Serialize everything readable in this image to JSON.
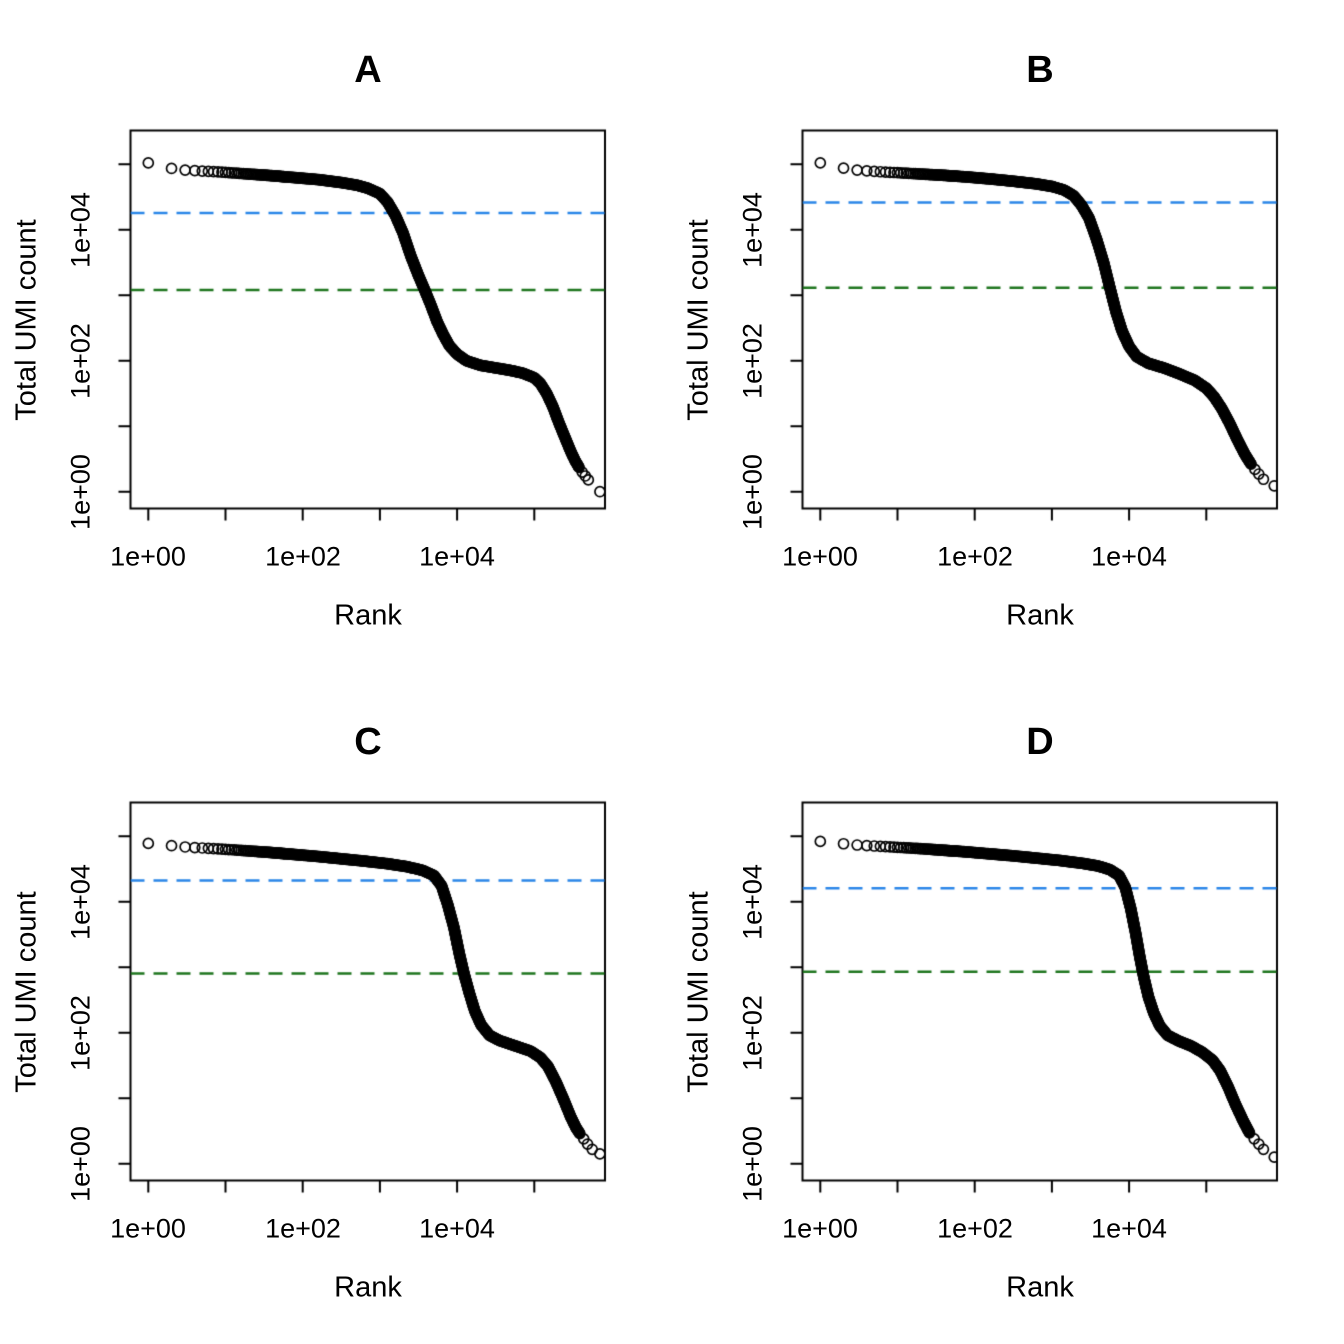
{
  "figure": {
    "background": "#FFFFFF",
    "point_color": "#000000"
  },
  "chart_data": [
    {
      "type": "scatter",
      "title": "A",
      "xlabel": "Rank",
      "ylabel": "Total UMI count",
      "xscale": "log",
      "yscale": "log",
      "xlim_log10": [
        -0.23,
        5.92
      ],
      "ylim_log10": [
        -0.26,
        5.51
      ],
      "x_ticks_log10": [
        0,
        1,
        2,
        3,
        4,
        5
      ],
      "y_ticks_log10": [
        0,
        1,
        2,
        3,
        4,
        5
      ],
      "x_tick_labels": [
        "1e+00",
        "1e+02",
        "1e+04"
      ],
      "y_tick_labels": [
        "1e+00",
        "1e+02",
        "1e+04"
      ],
      "grid": false,
      "knee_count": 18000,
      "inflection_count": 1200,
      "knee_color": "#2B86E8",
      "inflection_color": "#1E751E",
      "curve_log10": [
        [
          0,
          5.02
        ],
        [
          0.3,
          4.935
        ],
        [
          0.48,
          4.91
        ],
        [
          0.7,
          4.895
        ],
        [
          1.0,
          4.875
        ],
        [
          1.3,
          4.85
        ],
        [
          1.6,
          4.825
        ],
        [
          1.9,
          4.795
        ],
        [
          2.2,
          4.765
        ],
        [
          2.5,
          4.72
        ],
        [
          2.7,
          4.68
        ],
        [
          2.85,
          4.63
        ],
        [
          3.0,
          4.55
        ],
        [
          3.1,
          4.42
        ],
        [
          3.2,
          4.22
        ],
        [
          3.3,
          3.95
        ],
        [
          3.4,
          3.6
        ],
        [
          3.5,
          3.3
        ],
        [
          3.58,
          3.08
        ],
        [
          3.66,
          2.85
        ],
        [
          3.74,
          2.6
        ],
        [
          3.82,
          2.4
        ],
        [
          3.9,
          2.23
        ],
        [
          4.0,
          2.1
        ],
        [
          4.12,
          2.0
        ],
        [
          4.3,
          1.93
        ],
        [
          4.5,
          1.89
        ],
        [
          4.7,
          1.85
        ],
        [
          4.85,
          1.81
        ],
        [
          5.0,
          1.74
        ],
        [
          5.08,
          1.65
        ],
        [
          5.16,
          1.5
        ],
        [
          5.24,
          1.3
        ],
        [
          5.32,
          1.05
        ],
        [
          5.4,
          0.82
        ],
        [
          5.47,
          0.62
        ],
        [
          5.53,
          0.47
        ],
        [
          5.58,
          0.37
        ]
      ],
      "tail_log10": [
        [
          5.62,
          0.3
        ],
        [
          5.66,
          0.24
        ],
        [
          5.7,
          0.18
        ],
        [
          5.85,
          0.0
        ]
      ]
    },
    {
      "type": "scatter",
      "title": "B",
      "xlabel": "Rank",
      "ylabel": "Total UMI count",
      "xscale": "log",
      "yscale": "log",
      "xlim_log10": [
        -0.23,
        5.92
      ],
      "ylim_log10": [
        -0.26,
        5.51
      ],
      "x_ticks_log10": [
        0,
        1,
        2,
        3,
        4,
        5
      ],
      "y_ticks_log10": [
        0,
        1,
        2,
        3,
        4,
        5
      ],
      "x_tick_labels": [
        "1e+00",
        "1e+02",
        "1e+04"
      ],
      "y_tick_labels": [
        "1e+00",
        "1e+02",
        "1e+04"
      ],
      "grid": false,
      "knee_count": 26000,
      "inflection_count": 1300,
      "knee_color": "#2B86E8",
      "inflection_color": "#1E751E",
      "curve_log10": [
        [
          0,
          5.02
        ],
        [
          0.3,
          4.94
        ],
        [
          0.48,
          4.91
        ],
        [
          0.7,
          4.89
        ],
        [
          1.0,
          4.87
        ],
        [
          1.3,
          4.85
        ],
        [
          1.6,
          4.83
        ],
        [
          1.9,
          4.805
        ],
        [
          2.2,
          4.775
        ],
        [
          2.5,
          4.74
        ],
        [
          2.8,
          4.7
        ],
        [
          3.0,
          4.66
        ],
        [
          3.15,
          4.61
        ],
        [
          3.28,
          4.52
        ],
        [
          3.38,
          4.38
        ],
        [
          3.48,
          4.18
        ],
        [
          3.58,
          3.85
        ],
        [
          3.67,
          3.5
        ],
        [
          3.75,
          3.12
        ],
        [
          3.83,
          2.75
        ],
        [
          3.91,
          2.45
        ],
        [
          4.0,
          2.22
        ],
        [
          4.1,
          2.06
        ],
        [
          4.25,
          1.96
        ],
        [
          4.45,
          1.89
        ],
        [
          4.65,
          1.8
        ],
        [
          4.85,
          1.7
        ],
        [
          5.0,
          1.58
        ],
        [
          5.1,
          1.45
        ],
        [
          5.2,
          1.27
        ],
        [
          5.3,
          1.05
        ],
        [
          5.4,
          0.8
        ],
        [
          5.5,
          0.57
        ],
        [
          5.58,
          0.42
        ]
      ],
      "tail_log10": [
        [
          5.63,
          0.34
        ],
        [
          5.68,
          0.27
        ],
        [
          5.74,
          0.19
        ],
        [
          5.88,
          0.09
        ]
      ]
    },
    {
      "type": "scatter",
      "title": "C",
      "xlabel": "Rank",
      "ylabel": "Total UMI count",
      "xscale": "log",
      "yscale": "log",
      "xlim_log10": [
        -0.23,
        5.92
      ],
      "ylim_log10": [
        -0.26,
        5.51
      ],
      "x_ticks_log10": [
        0,
        1,
        2,
        3,
        4,
        5
      ],
      "y_ticks_log10": [
        0,
        1,
        2,
        3,
        4,
        5
      ],
      "x_tick_labels": [
        "1e+00",
        "1e+02",
        "1e+04"
      ],
      "y_tick_labels": [
        "1e+00",
        "1e+02",
        "1e+04"
      ],
      "grid": false,
      "knee_count": 21000,
      "inflection_count": 800,
      "knee_color": "#2B86E8",
      "inflection_color": "#1E751E",
      "curve_log10": [
        [
          0,
          4.89
        ],
        [
          0.3,
          4.855
        ],
        [
          0.48,
          4.835
        ],
        [
          0.7,
          4.82
        ],
        [
          1.0,
          4.8
        ],
        [
          1.3,
          4.775
        ],
        [
          1.6,
          4.75
        ],
        [
          1.9,
          4.72
        ],
        [
          2.2,
          4.69
        ],
        [
          2.5,
          4.655
        ],
        [
          2.8,
          4.62
        ],
        [
          3.1,
          4.58
        ],
        [
          3.35,
          4.535
        ],
        [
          3.55,
          4.48
        ],
        [
          3.7,
          4.4
        ],
        [
          3.8,
          4.24
        ],
        [
          3.88,
          3.95
        ],
        [
          3.96,
          3.6
        ],
        [
          4.03,
          3.2
        ],
        [
          4.09,
          2.9
        ],
        [
          4.16,
          2.6
        ],
        [
          4.23,
          2.33
        ],
        [
          4.31,
          2.12
        ],
        [
          4.42,
          1.96
        ],
        [
          4.55,
          1.88
        ],
        [
          4.75,
          1.8
        ],
        [
          4.95,
          1.72
        ],
        [
          5.08,
          1.62
        ],
        [
          5.18,
          1.48
        ],
        [
          5.28,
          1.25
        ],
        [
          5.38,
          0.98
        ],
        [
          5.47,
          0.72
        ],
        [
          5.54,
          0.55
        ],
        [
          5.59,
          0.46
        ]
      ],
      "tail_log10": [
        [
          5.64,
          0.38
        ],
        [
          5.69,
          0.3
        ],
        [
          5.75,
          0.22
        ],
        [
          5.85,
          0.15
        ]
      ]
    },
    {
      "type": "scatter",
      "title": "D",
      "xlabel": "Rank",
      "ylabel": "Total UMI count",
      "xscale": "log",
      "yscale": "log",
      "xlim_log10": [
        -0.23,
        5.92
      ],
      "ylim_log10": [
        -0.26,
        5.51
      ],
      "x_ticks_log10": [
        0,
        1,
        2,
        3,
        4,
        5
      ],
      "y_ticks_log10": [
        0,
        1,
        2,
        3,
        4,
        5
      ],
      "x_tick_labels": [
        "1e+00",
        "1e+02",
        "1e+04"
      ],
      "y_tick_labels": [
        "1e+00",
        "1e+02",
        "1e+04"
      ],
      "grid": false,
      "knee_count": 16000,
      "inflection_count": 850,
      "knee_color": "#2B86E8",
      "inflection_color": "#1E751E",
      "curve_log10": [
        [
          0,
          4.92
        ],
        [
          0.3,
          4.885
        ],
        [
          0.48,
          4.865
        ],
        [
          0.7,
          4.85
        ],
        [
          1.0,
          4.83
        ],
        [
          1.3,
          4.81
        ],
        [
          1.6,
          4.785
        ],
        [
          1.9,
          4.76
        ],
        [
          2.2,
          4.73
        ],
        [
          2.5,
          4.7
        ],
        [
          2.8,
          4.665
        ],
        [
          3.1,
          4.63
        ],
        [
          3.4,
          4.585
        ],
        [
          3.6,
          4.545
        ],
        [
          3.75,
          4.49
        ],
        [
          3.87,
          4.4
        ],
        [
          3.95,
          4.22
        ],
        [
          4.02,
          3.9
        ],
        [
          4.08,
          3.55
        ],
        [
          4.14,
          3.15
        ],
        [
          4.19,
          2.85
        ],
        [
          4.25,
          2.55
        ],
        [
          4.32,
          2.3
        ],
        [
          4.4,
          2.1
        ],
        [
          4.5,
          1.96
        ],
        [
          4.65,
          1.87
        ],
        [
          4.8,
          1.8
        ],
        [
          4.95,
          1.7
        ],
        [
          5.08,
          1.58
        ],
        [
          5.18,
          1.42
        ],
        [
          5.28,
          1.18
        ],
        [
          5.38,
          0.9
        ],
        [
          5.48,
          0.65
        ],
        [
          5.56,
          0.47
        ]
      ],
      "tail_log10": [
        [
          5.62,
          0.38
        ],
        [
          5.68,
          0.3
        ],
        [
          5.74,
          0.22
        ],
        [
          5.88,
          0.1
        ]
      ]
    }
  ]
}
